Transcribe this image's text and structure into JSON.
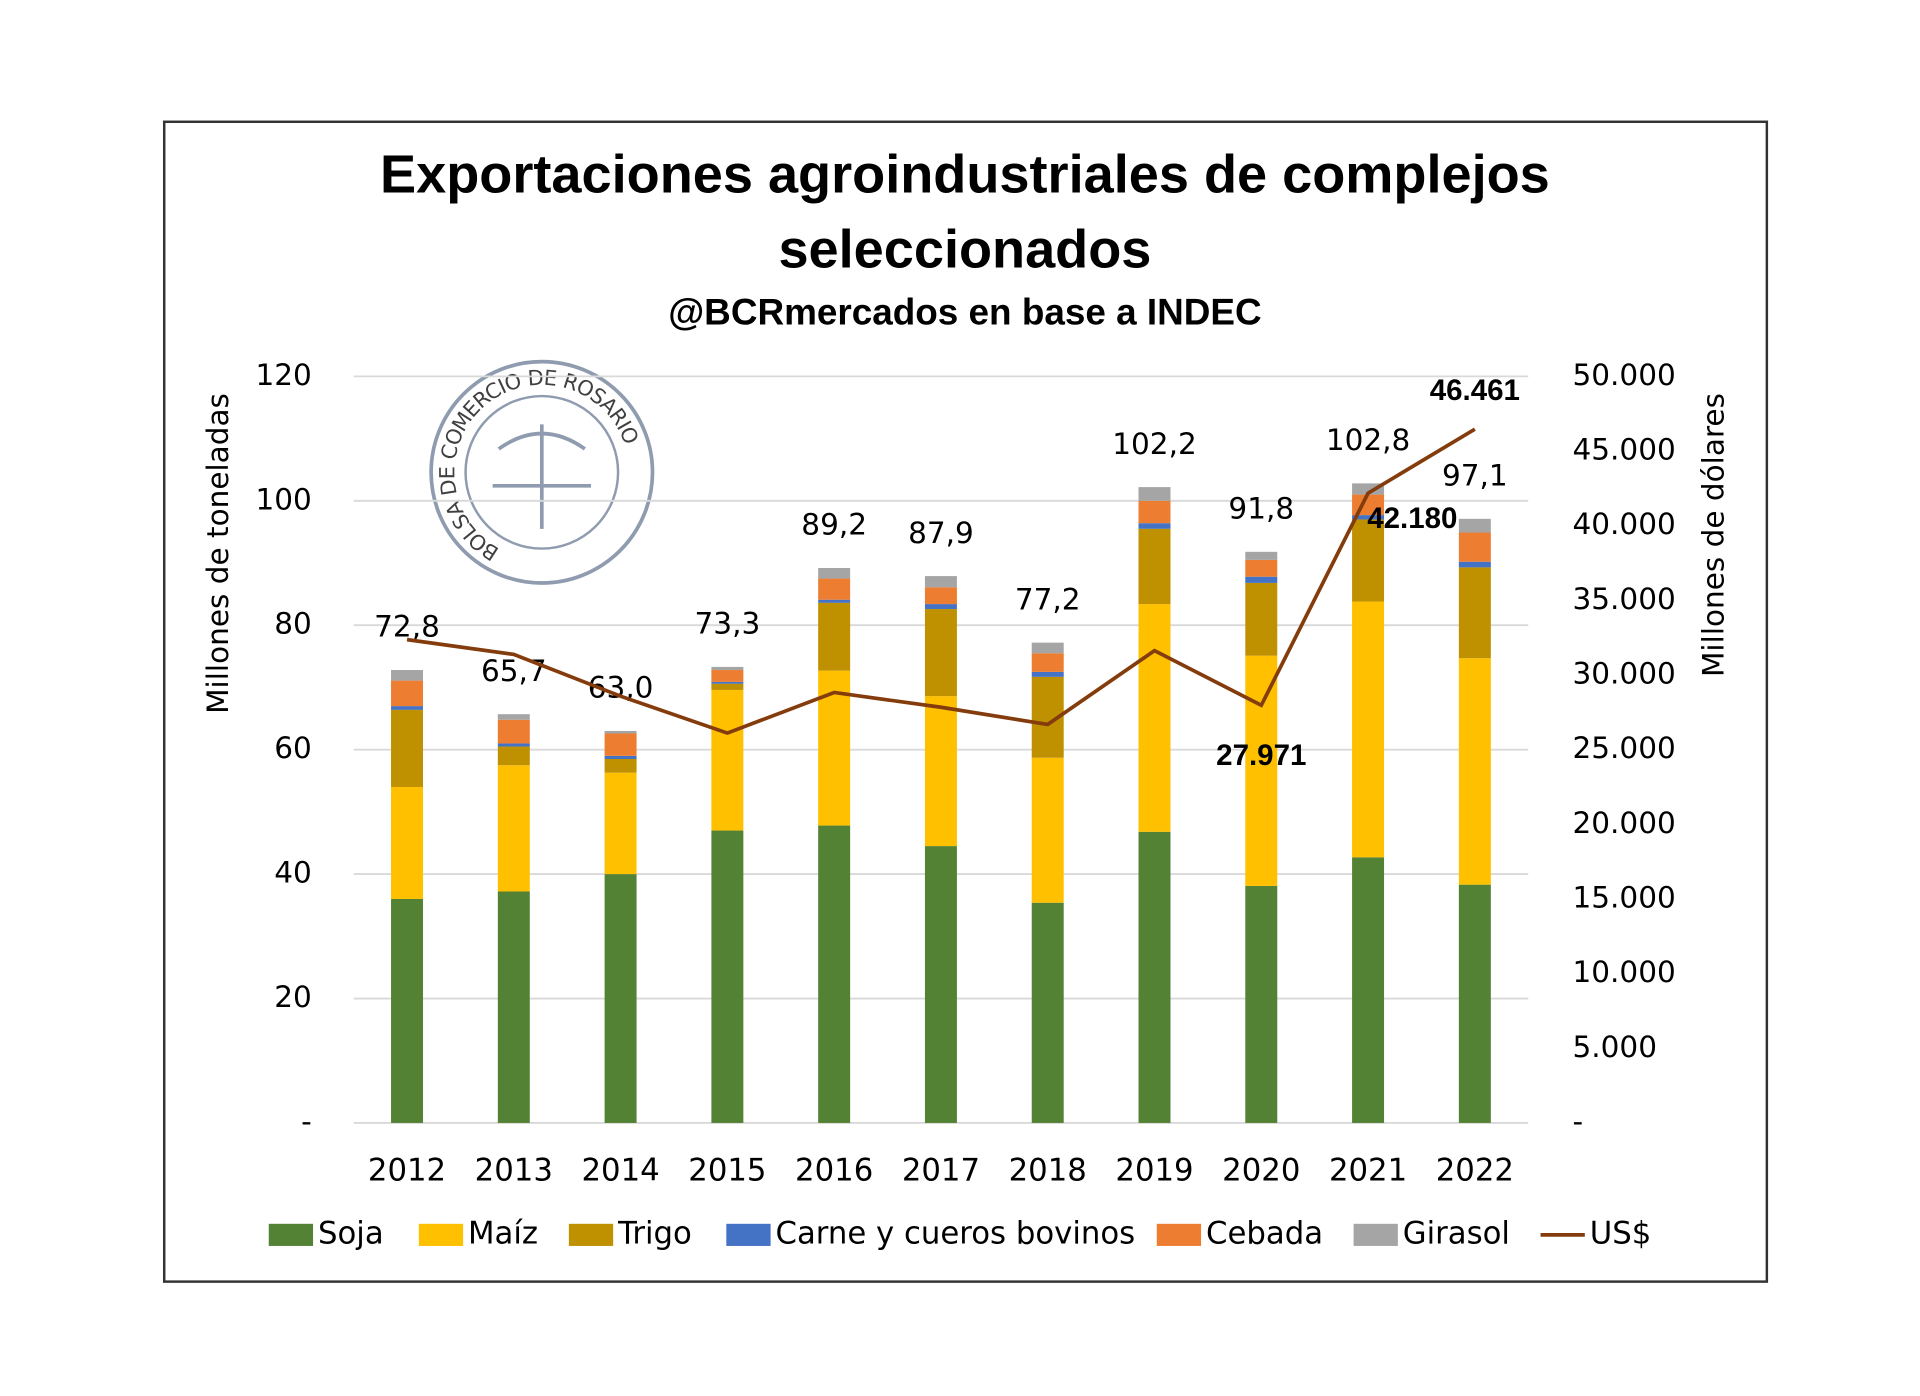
{
  "chart_data": {
    "type": "bar",
    "title": [
      "Exportaciones agroindustriales de complejos",
      "seleccionados"
    ],
    "subtitle": "@BCRmercados en base a INDEC",
    "watermark": "BOLSA DE COMERCIO DE ROSARIO",
    "ylabel": "Millones de toneladas",
    "y2label": "Millones de dólares",
    "categories": [
      "2012",
      "2013",
      "2014",
      "2015",
      "2016",
      "2017",
      "2018",
      "2019",
      "2020",
      "2021",
      "2022"
    ],
    "ylim": [
      0,
      120
    ],
    "yticks": [
      {
        "value": 0,
        "label": "-"
      },
      20,
      40,
      60,
      80,
      100,
      120
    ],
    "y2lim": [
      0,
      50000
    ],
    "y2ticks": [
      {
        "value": 0,
        "label": "-"
      },
      {
        "value": 5000,
        "label": "5.000"
      },
      {
        "value": 10000,
        "label": "10.000"
      },
      {
        "value": 15000,
        "label": "15.000"
      },
      {
        "value": 20000,
        "label": "20.000"
      },
      {
        "value": 25000,
        "label": "25.000"
      },
      {
        "value": 30000,
        "label": "30.000"
      },
      {
        "value": 35000,
        "label": "35.000"
      },
      {
        "value": 40000,
        "label": "40.000"
      },
      {
        "value": 45000,
        "label": "45.000"
      },
      {
        "value": 50000,
        "label": "50.000"
      }
    ],
    "grid": true,
    "legend": "bottom",
    "series": [
      {
        "name": "Soja",
        "color": "#548235",
        "values": [
          36,
          37.2,
          40,
          47,
          47.8,
          44.5,
          35.4,
          46.8,
          38.1,
          42.7,
          38.3
        ]
      },
      {
        "name": "Maíz",
        "color": "#ffc000",
        "values": [
          18,
          20.3,
          16.3,
          22.6,
          24.9,
          24.1,
          23.3,
          36.6,
          37,
          41.1,
          36.4
        ]
      },
      {
        "name": "Trigo",
        "color": "#bf9000",
        "values": [
          12.4,
          3,
          2.2,
          1,
          10.9,
          14,
          13,
          12.1,
          11.7,
          13.2,
          14.6
        ]
      },
      {
        "name": "Carne y cueros bovinos",
        "color": "#4472c4",
        "values": [
          0.6,
          0.5,
          0.5,
          0.3,
          0.5,
          0.8,
          0.8,
          0.9,
          1,
          0.7,
          0.9
        ]
      },
      {
        "name": "Cebada",
        "color": "#ed7d31",
        "values": [
          4.1,
          3.8,
          3.6,
          1.9,
          3.4,
          2.7,
          3,
          3.6,
          2.7,
          3.3,
          4.7
        ]
      },
      {
        "name": "Girasol",
        "color": "#a5a5a5",
        "values": [
          1.7,
          0.9,
          0.4,
          0.5,
          1.7,
          1.8,
          1.7,
          2.2,
          1.3,
          1.8,
          2.2
        ]
      },
      {
        "name": "US$",
        "color": "#843c0c",
        "type": "line",
        "axis": "y2",
        "values": [
          32370,
          31380,
          28580,
          26110,
          28830,
          27840,
          26690,
          31630,
          27971,
          42180,
          46461
        ],
        "value_labels": [
          null,
          null,
          null,
          null,
          null,
          null,
          null,
          null,
          "27.971",
          "42.180",
          "46.461"
        ]
      }
    ],
    "totals": [
      72.8,
      65.7,
      63.0,
      73.3,
      89.2,
      87.9,
      77.2,
      102.2,
      91.8,
      102.8,
      97.1
    ],
    "total_labels": [
      "72,8",
      "65,7",
      "63,0",
      "73,3",
      "89,2",
      "87,9",
      "77,2",
      "102,2",
      "91,8",
      "102,8",
      "97,1"
    ]
  }
}
